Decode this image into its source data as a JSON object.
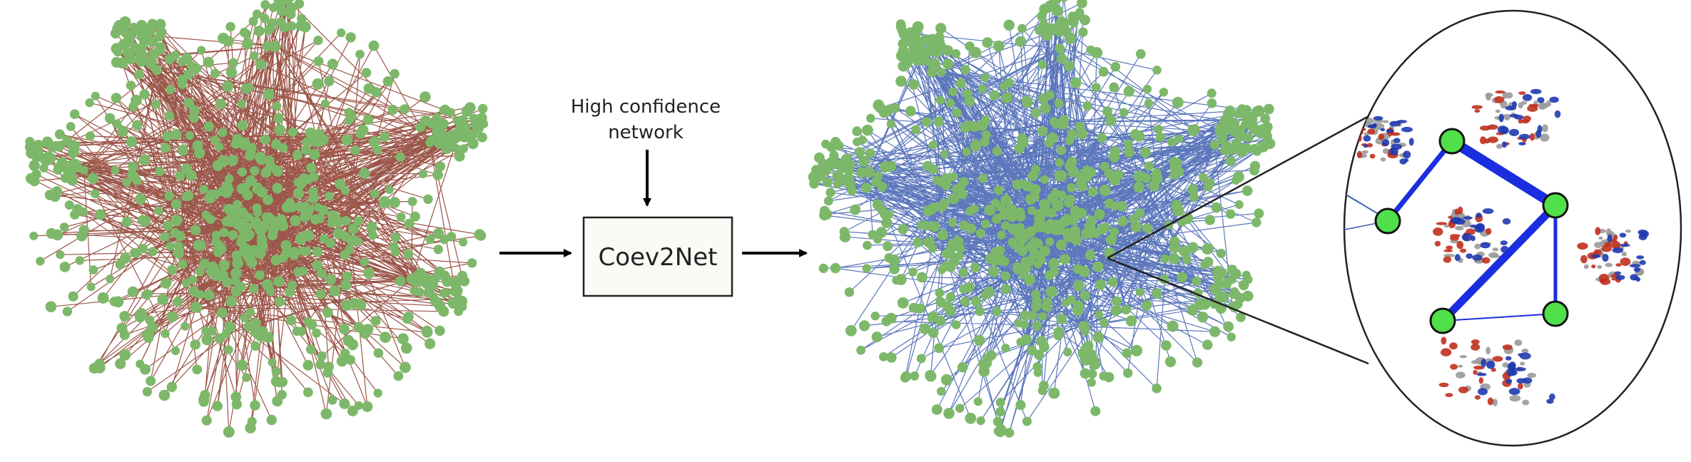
{
  "input": {
    "label": "High confidence network",
    "line1": "High confidence",
    "line2": "network"
  },
  "process": {
    "label": "Coev2Net"
  },
  "colors": {
    "node": "#7db86a",
    "input_edges": "#8b3a2a",
    "output_edges": "#3f5fb0",
    "zoom_edges": "#1a2ee0",
    "zoom_node": "#4fe04a",
    "protein_red": "#c0301e",
    "protein_blue": "#1f3ab0",
    "protein_grey": "#9a9a9a"
  },
  "networks": [
    {
      "name": "input-network",
      "edge_color": "input_edges"
    },
    {
      "name": "output-network",
      "edge_color": "output_edges"
    }
  ],
  "zoom_inset": {
    "nodes": 5,
    "edges": [
      {
        "from": "n1",
        "to": "n2",
        "weight": "thick"
      },
      {
        "from": "n2",
        "to": "n3",
        "weight": "thick"
      },
      {
        "from": "n3",
        "to": "n4",
        "weight": "thick"
      },
      {
        "from": "n3",
        "to": "n5",
        "weight": "medium"
      },
      {
        "from": "n4",
        "to": "n5",
        "weight": "thin"
      },
      {
        "from": "n1",
        "to": "n4",
        "weight": "medium"
      }
    ],
    "protein_structures": 5
  }
}
